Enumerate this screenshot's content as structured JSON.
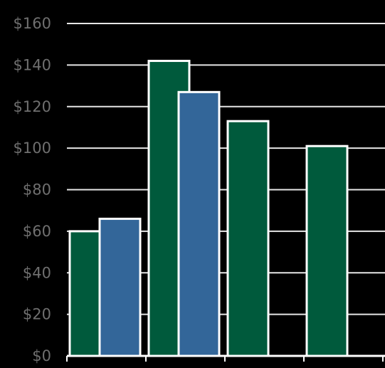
{
  "chart_data": {
    "type": "bar",
    "categories": [
      "",
      "",
      "",
      ""
    ],
    "series": [
      {
        "name": "",
        "color": "#005a3c",
        "values": [
          60,
          142,
          113,
          101
        ]
      },
      {
        "name": "",
        "color": "#336699",
        "values": [
          66,
          127,
          null,
          null
        ]
      }
    ],
    "ylim": [
      0,
      160
    ],
    "yticks": [
      {
        "value": 0,
        "label": "$0"
      },
      {
        "value": 20,
        "label": "$20"
      },
      {
        "value": 40,
        "label": "$40"
      },
      {
        "value": 60,
        "label": "$60"
      },
      {
        "value": 80,
        "label": "$80"
      },
      {
        "value": 100,
        "label": "$100"
      },
      {
        "value": 120,
        "label": "$120"
      },
      {
        "value": 140,
        "label": "$140"
      },
      {
        "value": 160,
        "label": "$160"
      }
    ],
    "grid": true,
    "title": "",
    "xlabel": "",
    "ylabel": "",
    "colors": {
      "background": "#000000",
      "grid": "#e6e6e6",
      "bar_outline": "#ffffff",
      "tick_text": "#6f6f6f"
    }
  }
}
